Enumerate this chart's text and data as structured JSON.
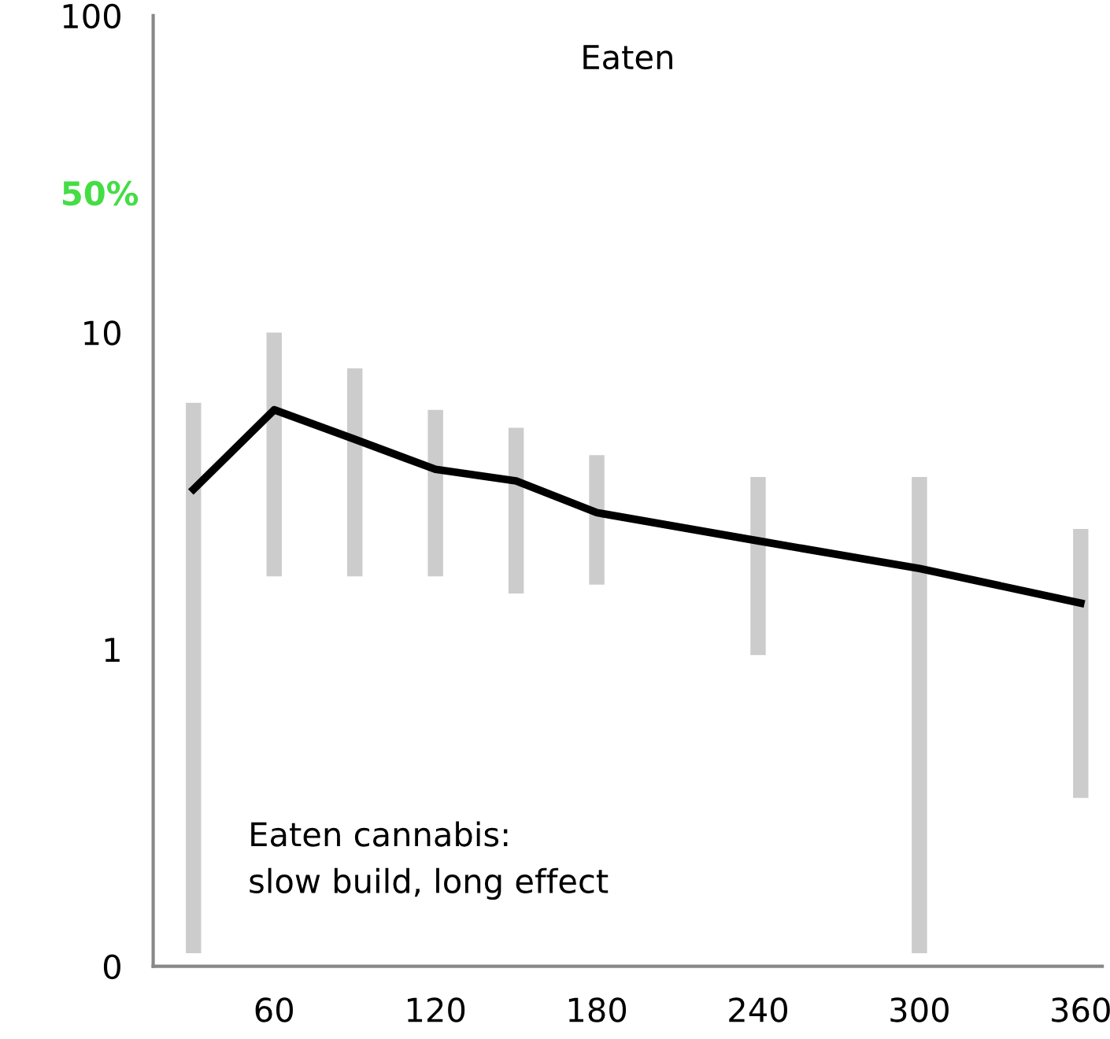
{
  "chart_data": {
    "type": "line",
    "title": "Eaten",
    "x": [
      30,
      60,
      90,
      120,
      150,
      180,
      240,
      300,
      360
    ],
    "series": [
      {
        "color": "#000000",
        "values": [
          3.2,
          5.7,
          4.6,
          3.7,
          3.4,
          2.7,
          2.2,
          1.8,
          1.4
        ],
        "errors": [
          [
            0.11,
            6.0
          ],
          [
            1.7,
            10
          ],
          [
            1.7,
            7.7
          ],
          [
            1.7,
            5.7
          ],
          [
            1.5,
            5.0
          ],
          [
            1.6,
            4.1
          ],
          [
            0.96,
            3.5
          ],
          [
            0.11,
            3.5
          ],
          [
            0.34,
            2.4
          ]
        ]
      }
    ],
    "log": "y",
    "xlim": [
      15,
      368
    ],
    "ylim": [
      0.1,
      100
    ],
    "xticks": [
      60,
      120,
      180,
      240,
      300,
      360
    ],
    "yticks": [
      {
        "value": 0.1,
        "label": "0"
      },
      1,
      10,
      100
    ],
    "grid": false,
    "legend": false,
    "marker": "none",
    "line_style": "solid",
    "annotations": [
      "50%",
      "Eaten cannabis:\nslow build, long effect"
    ]
  }
}
